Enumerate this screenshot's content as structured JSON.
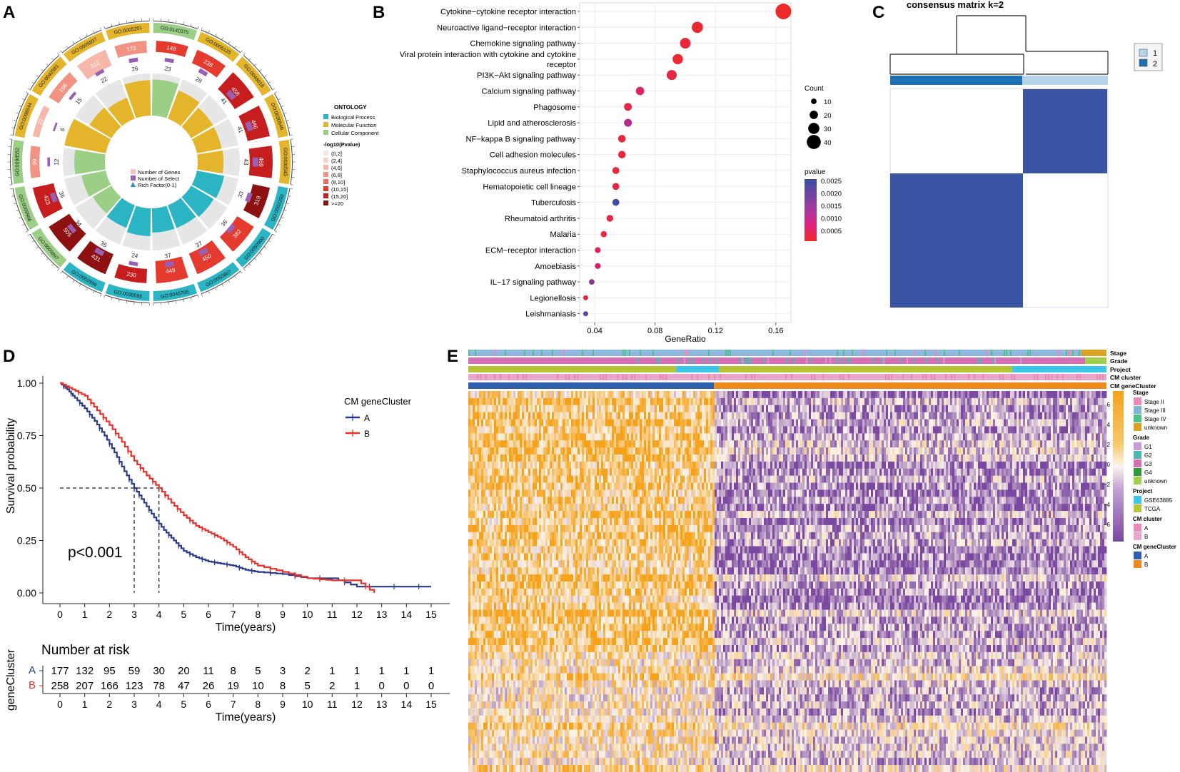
{
  "panel_labels": [
    "A",
    "B",
    "C",
    "D",
    "E"
  ],
  "colors": {
    "bp": "#2bb5c4",
    "mf": "#e4b52a",
    "cc": "#9ccf86",
    "clusterA": "#2a3a8c",
    "clusterB": "#e8312a",
    "heat_blue": "#3a54a4",
    "heat_orange": "#f5a623",
    "heat_purple": "#7d4ea0"
  },
  "chart_data": [
    {
      "panel": "A",
      "type": "circos",
      "terms": [
        {
          "id": "GO:0140375",
          "group": "CC",
          "genes": 148,
          "select": 23
        },
        {
          "id": "GO:0005125",
          "group": "MF",
          "genes": 238,
          "select": 28
        },
        {
          "id": "GO:0048018",
          "group": "MF",
          "genes": 458,
          "select": 41
        },
        {
          "id": "GO:0030546",
          "group": "MF",
          "genes": 466,
          "select": 41
        },
        {
          "id": "GO:0030545",
          "group": "MF",
          "genes": 469,
          "select": 43
        },
        {
          "id": "GO:0002250",
          "group": "BP",
          "genes": 319,
          "select": 33
        },
        {
          "id": "GO:0050900",
          "group": "BP",
          "genes": 382,
          "select": 36
        },
        {
          "id": "GO:0050867",
          "group": "BP",
          "genes": 450,
          "select": 37
        },
        {
          "id": "GO:0045785",
          "group": "BP",
          "genes": 448,
          "select": 37
        },
        {
          "id": "GO:0030595",
          "group": "BP",
          "genes": 230,
          "select": 24
        },
        {
          "id": "GO:0002696",
          "group": "BP",
          "genes": 431,
          "select": 35
        },
        {
          "id": "GO:0009897",
          "group": "CC",
          "genes": 505,
          "select": 34
        },
        {
          "id": "GO:0009986",
          "group": "CC",
          "genes": 423,
          "select": 36
        },
        {
          "id": "GO:0098552",
          "group": "CC",
          "genes": 99,
          "select": 12
        },
        {
          "id": "GO:0098544",
          "group": "MF",
          "genes": 22,
          "select": 6
        },
        {
          "id": "GO:0042581",
          "group": "MF",
          "genes": 166,
          "select": 15
        },
        {
          "id": "GO:0009897",
          "group": "MF",
          "genes": 312,
          "select": 22
        },
        {
          "id": "GO:0005201",
          "group": "MF",
          "genes": 172,
          "select": 26
        }
      ],
      "genes_labels": [
        "148",
        "238",
        "458",
        "466",
        "469",
        "319",
        "382",
        "450",
        "448",
        "230",
        "431",
        "505",
        "423",
        "99",
        "22",
        "166",
        "312",
        "172"
      ],
      "select_labels": [
        "23",
        "28",
        "41",
        "41",
        "43",
        "33",
        "36",
        "37",
        "37",
        "24",
        "35",
        "34",
        "36",
        "12",
        "6",
        "15",
        "22",
        "26"
      ],
      "legend": {
        "title_ontology": "ONTOLOGY",
        "bp": "Biological Process",
        "mf": "Molecular Function",
        "cc": "Cellular Component",
        "title_p": "-log10(Pvalue)",
        "bins": [
          "(0,2]",
          "(2,4]",
          "(4,6]",
          "(6,8]",
          "(8,10]",
          "(10,15]",
          "(15,20]",
          ">=20"
        ],
        "bin_colors": [
          "#f2e6e6",
          "#f6d2cc",
          "#f4b7aa",
          "#f19383",
          "#ec6b5a",
          "#e53a2e",
          "#c61e1e",
          "#8e1111"
        ],
        "center_genes": "Number of Genes",
        "center_select": "Number of Select",
        "center_rich": "Rich Factor(0-1)"
      }
    },
    {
      "panel": "B",
      "type": "scatter",
      "xlabel": "GeneRatio",
      "xticks": [
        0.04,
        0.08,
        0.12,
        0.16
      ],
      "xtick_labels": [
        "0.04",
        "0.08",
        "0.12",
        "0.16"
      ],
      "xlim": [
        0.03,
        0.17
      ],
      "terms": [
        {
          "name": "Cytokine−cytokine receptor interaction",
          "ratio": 0.165,
          "count": 46,
          "p": 0.0
        },
        {
          "name": "Neuroactive ligand−receptor interaction",
          "ratio": 0.108,
          "count": 30,
          "p": 0.0001
        },
        {
          "name": "Chemokine signaling pathway",
          "ratio": 0.1,
          "count": 28,
          "p": 0.0002
        },
        {
          "name": "Viral protein interaction with cytokine and cytokine receptor",
          "ratio": 0.095,
          "count": 27,
          "p": 0.0001
        },
        {
          "name": "PI3K−Akt signaling pathway",
          "ratio": 0.091,
          "count": 26,
          "p": 0.0004
        },
        {
          "name": "Calcium signaling pathway",
          "ratio": 0.07,
          "count": 20,
          "p": 0.0008
        },
        {
          "name": "Phagosome",
          "ratio": 0.062,
          "count": 18,
          "p": 0.0004
        },
        {
          "name": "Lipid and atherosclerosis",
          "ratio": 0.062,
          "count": 18,
          "p": 0.0015
        },
        {
          "name": "NF−kappa B signaling pathway",
          "ratio": 0.058,
          "count": 17,
          "p": 0.0003
        },
        {
          "name": "Cell adhesion molecules",
          "ratio": 0.058,
          "count": 17,
          "p": 0.0003
        },
        {
          "name": "Staphylococcus aureus infection",
          "ratio": 0.054,
          "count": 15,
          "p": 0.0002
        },
        {
          "name": "Hematopoietic cell lineage",
          "ratio": 0.054,
          "count": 15,
          "p": 0.0003
        },
        {
          "name": "Tuberculosis",
          "ratio": 0.054,
          "count": 15,
          "p": 0.0025
        },
        {
          "name": "Rheumatoid arthritis",
          "ratio": 0.05,
          "count": 14,
          "p": 0.0004
        },
        {
          "name": "Malaria",
          "ratio": 0.046,
          "count": 12,
          "p": 0.0002
        },
        {
          "name": "ECM−receptor interaction",
          "ratio": 0.042,
          "count": 11,
          "p": 0.0006
        },
        {
          "name": "Amoebiasis",
          "ratio": 0.042,
          "count": 11,
          "p": 0.0009
        },
        {
          "name": "IL−17 signaling pathway",
          "ratio": 0.038,
          "count": 10,
          "p": 0.0018
        },
        {
          "name": "Legionellosis",
          "ratio": 0.034,
          "count": 8,
          "p": 0.0002
        },
        {
          "name": "Leishmaniasis",
          "ratio": 0.034,
          "count": 8,
          "p": 0.0022
        }
      ],
      "count_legend": {
        "title": "Count",
        "values": [
          10,
          20,
          30,
          40
        ],
        "labels": [
          "10",
          "20",
          "30",
          "40"
        ]
      },
      "p_legend": {
        "title": "pvalue",
        "ticks": [
          "0.0025",
          "0.0020",
          "0.0015",
          "0.0010",
          "0.0005"
        ]
      }
    },
    {
      "panel": "C",
      "type": "heatmap",
      "title": "consensus matrix k=2",
      "cluster_sizes": [
        0.56,
        0.44
      ],
      "legend": [
        {
          "label": "1",
          "color": "#b6d4ea"
        },
        {
          "label": "2",
          "color": "#1d70b3"
        }
      ]
    },
    {
      "panel": "D",
      "type": "line",
      "xlabel": "Time(years)",
      "ylabel": "Survival probability",
      "xlim": [
        0,
        15
      ],
      "ylim": [
        0,
        1
      ],
      "xticks": [
        0,
        1,
        2,
        3,
        4,
        5,
        6,
        7,
        8,
        9,
        10,
        11,
        12,
        13,
        14,
        15
      ],
      "xtick_labels": [
        "0",
        "1",
        "2",
        "3",
        "4",
        "5",
        "6",
        "7",
        "8",
        "9",
        "10",
        "11",
        "12",
        "13",
        "14",
        "15"
      ],
      "yticks": [
        0,
        0.25,
        0.5,
        0.75,
        1
      ],
      "ytick_labels": [
        "0.00",
        "0.25",
        "0.50",
        "0.75",
        "1.00"
      ],
      "pvalue_text": "p<0.001",
      "legend_title": "CM geneCluster",
      "median": {
        "A": 3.0,
        "B": 4.0
      },
      "series": [
        {
          "name": "A",
          "color": "#2a3a8c",
          "x": [
            0,
            0.3,
            0.6,
            1.0,
            1.4,
            1.8,
            2.2,
            2.6,
            3.0,
            3.4,
            3.8,
            4.2,
            4.6,
            5.0,
            5.5,
            6.0,
            6.5,
            7.0,
            7.5,
            8.0,
            9.0,
            10.0,
            11.0,
            12.0,
            13.0,
            14.0,
            15.0
          ],
          "y": [
            1.0,
            0.97,
            0.93,
            0.88,
            0.82,
            0.75,
            0.67,
            0.58,
            0.5,
            0.43,
            0.36,
            0.3,
            0.25,
            0.2,
            0.17,
            0.15,
            0.14,
            0.13,
            0.11,
            0.1,
            0.09,
            0.07,
            0.07,
            0.03,
            0.03,
            0.03,
            0.03
          ]
        },
        {
          "name": "B",
          "color": "#e8312a",
          "x": [
            0,
            0.5,
            1.0,
            1.5,
            2.0,
            2.5,
            3.0,
            3.5,
            4.0,
            4.5,
            5.0,
            5.5,
            6.0,
            6.5,
            7.0,
            7.5,
            8.0,
            9.0,
            10.0,
            11.0,
            12.0,
            12.7
          ],
          "y": [
            1.0,
            0.97,
            0.94,
            0.87,
            0.8,
            0.72,
            0.63,
            0.56,
            0.5,
            0.43,
            0.37,
            0.32,
            0.29,
            0.26,
            0.22,
            0.17,
            0.13,
            0.1,
            0.07,
            0.06,
            0.06,
            0.0
          ]
        }
      ],
      "risk_table": {
        "title": "Number at risk",
        "ylabel": "geneCluster",
        "xlabel": "Time(years)",
        "rows": [
          {
            "name": "A",
            "values": [
              177,
              132,
              95,
              59,
              30,
              20,
              11,
              8,
              5,
              3,
              2,
              1,
              1,
              1,
              1,
              1
            ]
          },
          {
            "name": "B",
            "values": [
              258,
              207,
              166,
              123,
              78,
              47,
              26,
              19,
              10,
              8,
              5,
              2,
              1,
              0,
              0,
              0
            ]
          }
        ]
      }
    },
    {
      "panel": "E",
      "type": "heatmap",
      "annotation_rows": [
        "Stage",
        "Grade",
        "Project",
        "CM cluster",
        "CM geneCluster"
      ],
      "colorbar_ticks": [
        "6",
        "4",
        "2",
        "0",
        "−2",
        "−4",
        "−6"
      ],
      "colorbar_range": [
        -6,
        6
      ],
      "legend_groups": [
        {
          "title": "Stage",
          "items": [
            {
              "label": "Stage II",
              "color": "#e98ab8"
            },
            {
              "label": "Stage III",
              "color": "#7fb6d4"
            },
            {
              "label": "Stage IV",
              "color": "#4cc18a"
            },
            {
              "label": "unknown",
              "color": "#d9a426"
            }
          ]
        },
        {
          "title": "Grade",
          "items": [
            {
              "label": "G1",
              "color": "#c89bd6"
            },
            {
              "label": "G2",
              "color": "#4bb9b0"
            },
            {
              "label": "G3",
              "color": "#d36fb2"
            },
            {
              "label": "G4",
              "color": "#2e9a3a"
            },
            {
              "label": "unknown",
              "color": "#9fcf4b"
            }
          ]
        },
        {
          "title": "Project",
          "items": [
            {
              "label": "GSE63885",
              "color": "#3cc6e8"
            },
            {
              "label": "TCGA",
              "color": "#b6c535"
            }
          ]
        },
        {
          "title": "CM cluster",
          "items": [
            {
              "label": "A",
              "color": "#e98ab8"
            },
            {
              "label": "B",
              "color": "#e6a5c9"
            }
          ]
        },
        {
          "title": "CM geneCluster",
          "items": [
            {
              "label": "A",
              "color": "#2f5fae"
            },
            {
              "label": "B",
              "color": "#f08a1c"
            }
          ]
        }
      ],
      "split_fraction": 0.385
    }
  ]
}
